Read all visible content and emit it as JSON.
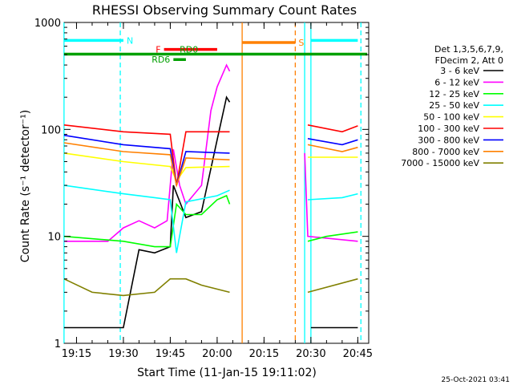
{
  "chart_data": {
    "type": "line",
    "title": "RHESSI Observing Summary Count Rates",
    "xlabel": "Start Time (11-Jan-15 19:11:02)",
    "ylabel": "Count Rate (s⁻¹ detector⁻¹)",
    "y_scale": "log",
    "ylim": [
      1,
      1000
    ],
    "x_range_minutes": [
      "19:11:02",
      "20:48:30"
    ],
    "x_ticks": [
      "19:15",
      "19:30",
      "19:45",
      "20:00",
      "20:15",
      "20:30",
      "20:45"
    ],
    "y_ticks": [
      "1",
      "10",
      "100",
      "1000"
    ],
    "timestamp": "25-Oct-2021 03:41",
    "legend": {
      "placement": "right",
      "header": [
        "Det 1,3,5,6,7,9,",
        "FDecim 2, Att 0"
      ]
    },
    "series": [
      {
        "name": "3 - 6 keV",
        "color": "#000000",
        "points": [
          [
            "19:11",
            1.4
          ],
          [
            "19:30",
            1.4
          ],
          [
            "19:35",
            7.5
          ],
          [
            "19:40",
            7
          ],
          [
            "19:45",
            8
          ],
          [
            "19:46",
            30
          ],
          [
            "19:50",
            15
          ],
          [
            "19:55",
            17
          ],
          [
            "20:00",
            80
          ],
          [
            "20:03",
            200
          ],
          [
            "20:04",
            180
          ],
          [
            "20:30",
            1.4
          ],
          [
            "20:45",
            1.4
          ]
        ]
      },
      {
        "name": "6 - 12 keV",
        "color": "#ff00ff",
        "points": [
          [
            "19:11",
            9
          ],
          [
            "19:25",
            9
          ],
          [
            "19:30",
            12
          ],
          [
            "19:35",
            14
          ],
          [
            "19:40",
            12
          ],
          [
            "19:44",
            14
          ],
          [
            "19:46",
            65
          ],
          [
            "19:48",
            30
          ],
          [
            "19:50",
            20
          ],
          [
            "19:55",
            30
          ],
          [
            "19:58",
            150
          ],
          [
            "20:00",
            250
          ],
          [
            "20:03",
            400
          ],
          [
            "20:04",
            350
          ],
          [
            "20:28",
            60
          ],
          [
            "20:29",
            10
          ],
          [
            "20:45",
            9
          ]
        ]
      },
      {
        "name": "12 - 25 keV",
        "color": "#00ff00",
        "points": [
          [
            "19:11",
            10
          ],
          [
            "19:30",
            9
          ],
          [
            "19:40",
            8
          ],
          [
            "19:45",
            8
          ],
          [
            "19:47",
            20
          ],
          [
            "19:50",
            16
          ],
          [
            "19:55",
            16
          ],
          [
            "20:00",
            22
          ],
          [
            "20:03",
            24
          ],
          [
            "20:04",
            20
          ],
          [
            "20:29",
            9
          ],
          [
            "20:35",
            10
          ],
          [
            "20:45",
            11
          ]
        ]
      },
      {
        "name": "25 - 50 keV",
        "color": "#00ffff",
        "points": [
          [
            "19:11",
            30
          ],
          [
            "19:30",
            25
          ],
          [
            "19:40",
            23
          ],
          [
            "19:45",
            22
          ],
          [
            "19:47",
            7
          ],
          [
            "19:50",
            21
          ],
          [
            "20:00",
            24
          ],
          [
            "20:04",
            27
          ],
          [
            "20:29",
            22
          ],
          [
            "20:40",
            23
          ],
          [
            "20:45",
            25
          ]
        ]
      },
      {
        "name": "50 - 100 keV",
        "color": "#ffff00",
        "points": [
          [
            "19:11",
            60
          ],
          [
            "19:30",
            50
          ],
          [
            "19:45",
            45
          ],
          [
            "19:47",
            33
          ],
          [
            "19:50",
            44
          ],
          [
            "20:04",
            45
          ],
          [
            "20:29",
            55
          ],
          [
            "20:45",
            55
          ]
        ]
      },
      {
        "name": "100 - 300 keV",
        "color": "#ff0000",
        "points": [
          [
            "19:11",
            110
          ],
          [
            "19:30",
            95
          ],
          [
            "19:45",
            90
          ],
          [
            "19:47",
            30
          ],
          [
            "19:50",
            95
          ],
          [
            "20:04",
            95
          ],
          [
            "20:29",
            110
          ],
          [
            "20:40",
            95
          ],
          [
            "20:45",
            108
          ]
        ]
      },
      {
        "name": "300 - 800 keV",
        "color": "#0000ff",
        "points": [
          [
            "19:11",
            88
          ],
          [
            "19:30",
            72
          ],
          [
            "19:45",
            66
          ],
          [
            "19:47",
            30
          ],
          [
            "19:50",
            62
          ],
          [
            "20:04",
            60
          ],
          [
            "20:29",
            82
          ],
          [
            "20:40",
            72
          ],
          [
            "20:45",
            80
          ]
        ]
      },
      {
        "name": "800 - 7000 keV",
        "color": "#ff8000",
        "points": [
          [
            "19:11",
            75
          ],
          [
            "19:30",
            62
          ],
          [
            "19:45",
            58
          ],
          [
            "19:47",
            30
          ],
          [
            "19:50",
            54
          ],
          [
            "20:04",
            52
          ],
          [
            "20:29",
            72
          ],
          [
            "20:40",
            62
          ],
          [
            "20:45",
            68
          ]
        ]
      },
      {
        "name": "7000 - 15000 keV",
        "color": "#808000",
        "points": [
          [
            "19:11",
            4
          ],
          [
            "19:20",
            3
          ],
          [
            "19:30",
            2.8
          ],
          [
            "19:40",
            3
          ],
          [
            "19:45",
            4
          ],
          [
            "19:50",
            4
          ],
          [
            "19:55",
            3.5
          ],
          [
            "20:04",
            3
          ],
          [
            "20:29",
            3
          ],
          [
            "20:45",
            4
          ]
        ]
      }
    ],
    "annotations": [
      {
        "label": "N",
        "color": "#00ffff",
        "x_from": "19:11",
        "x_to": "19:30",
        "y": 680
      },
      {
        "label": "",
        "color": "#00ffff",
        "x_from": "20:30",
        "x_to": "20:45",
        "y": 680
      },
      {
        "label": "S",
        "color": "#ff8000",
        "x_from": "20:08",
        "x_to": "20:25",
        "y": 650
      },
      {
        "label": "F",
        "color": "#ff0000",
        "x_from": "19:43",
        "x_to": "20:00",
        "y": 560
      },
      {
        "label": "RD0",
        "color": "#00a000",
        "x_from": "19:11",
        "x_to": "20:48",
        "y": 505
      },
      {
        "label": "RD6",
        "color": "#00a000",
        "x_from": "19:46",
        "x_to": "19:50",
        "y": 450
      }
    ],
    "vertical_lines": [
      {
        "x": "19:11",
        "color": "#00ffff",
        "style": "solid"
      },
      {
        "x": "19:29",
        "color": "#00ffff",
        "style": "dashed"
      },
      {
        "x": "20:08",
        "color": "#ff8000",
        "style": "solid"
      },
      {
        "x": "20:25",
        "color": "#ff8000",
        "style": "dashed"
      },
      {
        "x": "20:28",
        "color": "#00ffff",
        "style": "solid"
      },
      {
        "x": "20:30",
        "color": "#00ffff",
        "style": "solid"
      },
      {
        "x": "20:46",
        "color": "#00ffff",
        "style": "dashed"
      }
    ],
    "data_gap": [
      "20:04",
      "20:28"
    ]
  }
}
